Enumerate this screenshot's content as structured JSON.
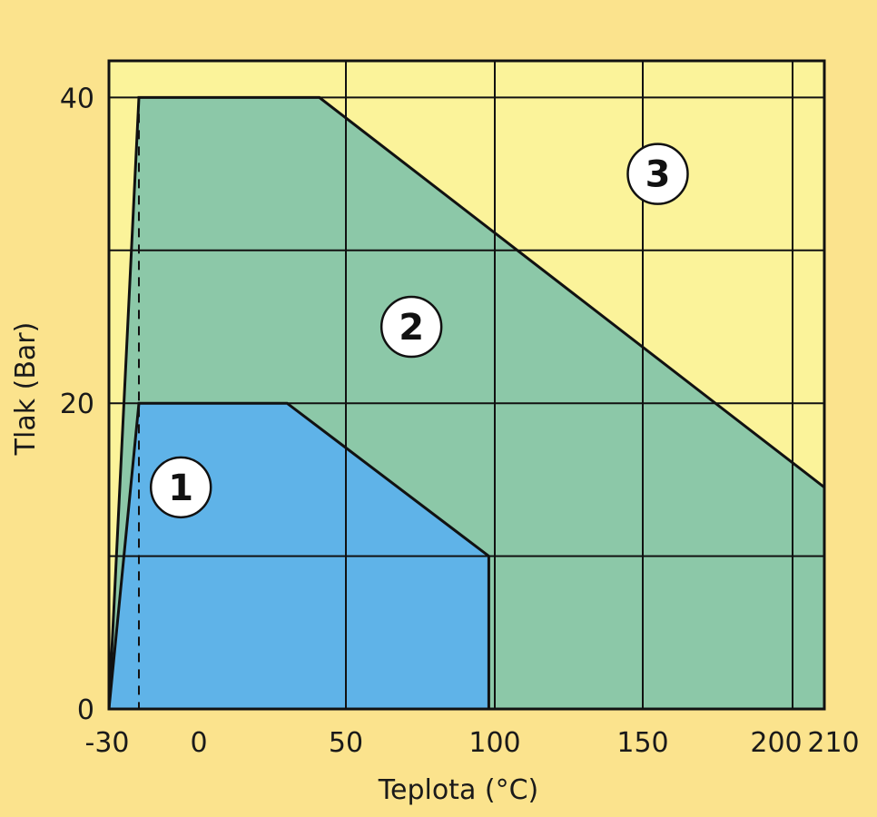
{
  "chart_data": {
    "type": "area",
    "xlabel": "Teplota (°C)",
    "ylabel": "Tlak (Bar)",
    "x_ticks": [
      {
        "value": -30,
        "label": "-30"
      },
      {
        "value": 0,
        "label": "0"
      },
      {
        "value": 50,
        "label": "50"
      },
      {
        "value": 100,
        "label": "100"
      },
      {
        "value": 150,
        "label": "150"
      },
      {
        "value": 200,
        "label": "200"
      },
      {
        "value": 210,
        "label": "210"
      }
    ],
    "y_ticks": [
      {
        "value": 0,
        "label": "0"
      },
      {
        "value": 20,
        "label": "20"
      },
      {
        "value": 40,
        "label": "40"
      }
    ],
    "x_gridlines": [
      50,
      100,
      150,
      200
    ],
    "y_gridlines": [
      10,
      20,
      30,
      40
    ],
    "xlim": [
      -30,
      210
    ],
    "ylim": [
      0,
      42.4
    ],
    "dashed_reference_x": -20,
    "grid": true,
    "regions": [
      {
        "label": "1",
        "color": "#5fb3e8",
        "points": [
          [
            -30,
            0
          ],
          [
            -20,
            20
          ],
          [
            30,
            20
          ],
          [
            98,
            10
          ],
          [
            98,
            0
          ]
        ],
        "label_at": [
          -6,
          14.5
        ]
      },
      {
        "label": "2",
        "color": "#8cc8a8",
        "points": [
          [
            -30,
            0
          ],
          [
            -20,
            40
          ],
          [
            41,
            40
          ],
          [
            210,
            14.5
          ],
          [
            210,
            0
          ]
        ],
        "label_at": [
          72,
          25
        ]
      },
      {
        "label": "3",
        "color": "#fbf39a",
        "points": [
          [
            -30,
            0
          ],
          [
            -30,
            42.4
          ],
          [
            210,
            42.4
          ],
          [
            210,
            0
          ]
        ],
        "label_at": [
          155,
          35
        ]
      }
    ]
  },
  "colors": {
    "page_background": "#fbe38d",
    "plot_background": "#fbf39a",
    "line": "#111111"
  }
}
